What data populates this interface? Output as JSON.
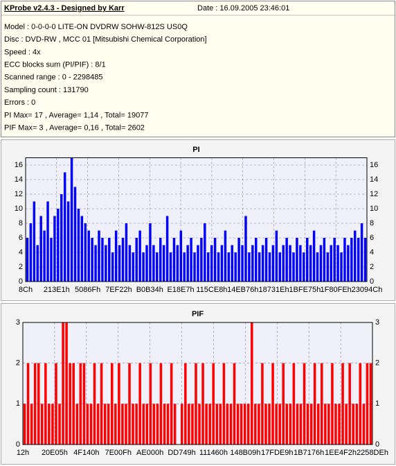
{
  "header": {
    "title": "KProbe v2.4.3 - Designed by Karr",
    "date": "Date : 16.09.2005 23:46:01"
  },
  "info": [
    "Model : 0-0-0-0 LITE-ON DVDRW SOHW-812S  US0Q",
    "Disc : DVD-RW , MCC 01 [Mitsubishi Chemical Corporation]",
    "Speed : 4x",
    "ECC blocks sum (PI/PIF) : 8/1",
    "Scanned range : 0 - 2298485",
    "Sampling count : 131790",
    "Errors : 0",
    "PI Max= 17 , Average= 1,14 , Total= 19077",
    "PIF Max= 3 , Average= 0,16 , Total= 2602"
  ],
  "chart_data": [
    {
      "type": "bar",
      "title": "PI",
      "color": "#0000ff",
      "values": [
        6,
        8,
        11,
        5,
        9,
        7,
        11,
        6,
        9,
        10,
        12,
        15,
        11,
        17,
        13,
        10,
        9,
        8,
        7,
        6,
        5,
        7,
        6,
        5,
        6,
        4,
        7,
        5,
        6,
        8,
        5,
        4,
        6,
        7,
        4,
        5,
        8,
        5,
        4,
        6,
        5,
        9,
        4,
        6,
        5,
        7,
        4,
        5,
        6,
        4,
        5,
        6,
        8,
        4,
        5,
        6,
        4,
        5,
        7,
        4,
        5,
        4,
        6,
        5,
        9,
        4,
        5,
        6,
        4,
        5,
        6,
        4,
        5,
        7,
        4,
        5,
        6,
        5,
        4,
        6,
        5,
        4,
        6,
        5,
        7,
        4,
        5,
        6,
        4,
        5,
        6,
        5,
        4,
        6,
        5,
        6,
        7,
        6,
        8,
        6
      ],
      "ylim": [
        0,
        17
      ],
      "yticks": [
        0,
        2,
        4,
        6,
        8,
        10,
        12,
        14,
        16
      ],
      "xtick_labels": [
        "8Ch",
        "213E1h",
        "5086Fh",
        "7EF22h",
        "B0B34h",
        "E18E7h",
        "115CE8h",
        "14EB76h",
        "18731Eh",
        "1BFE75h",
        "1F80FEh",
        "23094Ch"
      ]
    },
    {
      "type": "bar",
      "title": "PIF",
      "color": "#ff0000",
      "values": [
        1,
        2,
        1,
        2,
        2,
        1,
        2,
        1,
        1,
        2,
        1,
        3,
        3,
        2,
        2,
        1,
        2,
        2,
        1,
        1,
        2,
        1,
        2,
        1,
        1,
        2,
        1,
        2,
        1,
        1,
        2,
        1,
        1,
        2,
        1,
        1,
        2,
        1,
        1,
        2,
        1,
        1,
        2,
        1,
        0,
        1,
        2,
        1,
        1,
        2,
        1,
        2,
        1,
        1,
        2,
        1,
        1,
        2,
        1,
        1,
        2,
        1,
        1,
        1,
        1,
        3,
        1,
        1,
        2,
        1,
        1,
        2,
        1,
        1,
        2,
        1,
        1,
        2,
        1,
        1,
        2,
        1,
        1,
        2,
        1,
        2,
        1,
        1,
        2,
        1,
        1,
        2,
        1,
        2,
        1,
        1,
        2,
        1,
        2,
        2
      ],
      "ylim": [
        0,
        3
      ],
      "yticks": [
        0,
        1,
        2,
        3
      ],
      "xtick_labels": [
        "12h",
        "20E05h",
        "4F140h",
        "7E00Fh",
        "AE000h",
        "DD749h",
        "111460h",
        "148B09h",
        "17FDE9h",
        "1B7176h",
        "1EE4F2h",
        "2258DEh"
      ]
    }
  ]
}
